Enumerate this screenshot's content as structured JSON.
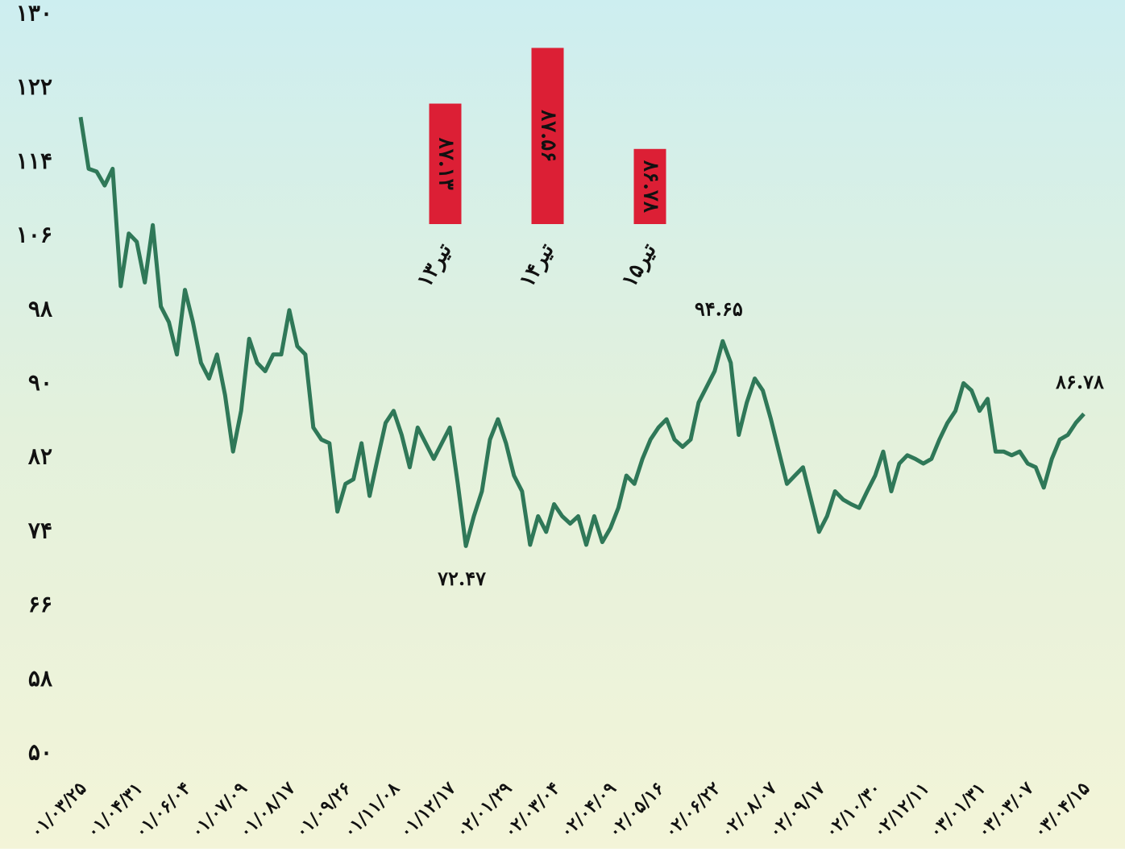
{
  "chart_data": [
    {
      "type": "line",
      "categories": [
        "۰۱/۰۳/۲۵",
        null,
        null,
        null,
        null,
        null,
        null,
        "۰۱/۰۴/۳۱",
        null,
        null,
        null,
        null,
        null,
        "۰۱/۰۶/۰۴",
        null,
        null,
        null,
        null,
        null,
        null,
        "۰۱/۰۷/۰۹",
        null,
        null,
        null,
        null,
        null,
        "۰۱/۰۸/۱۷",
        null,
        null,
        null,
        null,
        null,
        null,
        "۰۱/۰۹/۲۶",
        null,
        null,
        null,
        null,
        null,
        "۰۱/۱۱/۰۸",
        null,
        null,
        null,
        null,
        null,
        null,
        "۰۱/۱۲/۱۷",
        null,
        null,
        null,
        null,
        null,
        null,
        "۰۲/۰۱/۲۹",
        null,
        null,
        null,
        null,
        null,
        "۰۲/۰۳/۰۴",
        null,
        null,
        null,
        null,
        null,
        null,
        "۰۲/۰۴/۰۹",
        null,
        null,
        null,
        null,
        null,
        "۰۲/۰۵/۱۶",
        null,
        null,
        null,
        null,
        null,
        null,
        "۰۲/۰۶/۲۲",
        null,
        null,
        null,
        null,
        null,
        null,
        "۰۲/۰۸/۰۷",
        null,
        null,
        null,
        null,
        null,
        "۰۲/۰۹/۱۷",
        null,
        null,
        null,
        null,
        null,
        null,
        "۰۲/۱۰/۳۰",
        null,
        null,
        null,
        null,
        null,
        "۰۲/۱۲/۱۱",
        null,
        null,
        null,
        null,
        null,
        null,
        "۰۳/۰۱/۳۱",
        null,
        null,
        null,
        null,
        null,
        "۰۳/۰۳/۰۷",
        null,
        null,
        null,
        null,
        null,
        null,
        "۰۳/۰۴/۱۵"
      ],
      "values": [
        118.9,
        113.3,
        113.0,
        111.5,
        113.3,
        100.6,
        106.3,
        105.4,
        101,
        107.2,
        98.4,
        96.7,
        93.2,
        100.2,
        96.7,
        92.3,
        90.6,
        93.2,
        88.8,
        82.7,
        87.1,
        94.9,
        92.3,
        91.4,
        93.2,
        93.2,
        98,
        94.1,
        93.2,
        85.3,
        84,
        83.6,
        76.2,
        79.2,
        79.7,
        83.6,
        77.9,
        81.9,
        85.8,
        87.1,
        84.5,
        81,
        85.3,
        83.6,
        81.9,
        83.6,
        85.3,
        79.2,
        72.47,
        75.7,
        78.4,
        84,
        86.2,
        83.6,
        80.1,
        78.4,
        72.6,
        75.7,
        74,
        77,
        75.7,
        74.9,
        75.7,
        72.6,
        75.7,
        72.9,
        74.4,
        76.6,
        80.1,
        79.2,
        81.9,
        84,
        85.3,
        86.2,
        84,
        83.2,
        84,
        88,
        89.7,
        91.4,
        94.65,
        92.3,
        84.5,
        88,
        90.6,
        89.3,
        86.2,
        82.7,
        79.2,
        80.1,
        81,
        77.5,
        74,
        75.7,
        78.4,
        77.5,
        77,
        76.6,
        78.4,
        80.1,
        82.7,
        78.4,
        81.4,
        82.3,
        81.9,
        81.4,
        81.9,
        84,
        85.8,
        87.1,
        90.1,
        89.3,
        87.1,
        88.4,
        82.7,
        82.7,
        82.3,
        82.7,
        81.4,
        81,
        78.8,
        81.9,
        84,
        84.5,
        85.8,
        86.78
      ],
      "color": "#2f7858",
      "ylim": [
        50,
        130
      ],
      "yticks": [
        {
          "value": 130,
          "label": "۱۳۰"
        },
        {
          "value": 122,
          "label": "۱۲۲"
        },
        {
          "value": 114,
          "label": "۱۱۴"
        },
        {
          "value": 106,
          "label": "۱۰۶"
        },
        {
          "value": 98,
          "label": "۹۸"
        },
        {
          "value": 90,
          "label": "۹۰"
        },
        {
          "value": 82,
          "label": "۸۲"
        },
        {
          "value": 74,
          "label": "۷۴"
        },
        {
          "value": 66,
          "label": "۶۶"
        },
        {
          "value": 58,
          "label": "۵۸"
        },
        {
          "value": 50,
          "label": "۵۰"
        }
      ],
      "grid": false,
      "annotations": [
        {
          "label": "۹۴.۶۵",
          "value": 94.65
        },
        {
          "label": "۷۲.۴۷",
          "value": 72.47
        },
        {
          "label": "۸۶.۷۸",
          "value": 86.78
        }
      ]
    },
    {
      "type": "bar",
      "categories": [
        "۱۳تیر",
        "۱۴تیر",
        "۱۵تیر"
      ],
      "values": [
        87.13,
        87.56,
        86.78
      ],
      "value_labels": [
        "۸۷.۱۳",
        "۸۷.۵۶",
        "۸۶.۷۸"
      ],
      "color": "#dc1f35",
      "ylim": [
        86.2,
        87.6
      ]
    }
  ]
}
